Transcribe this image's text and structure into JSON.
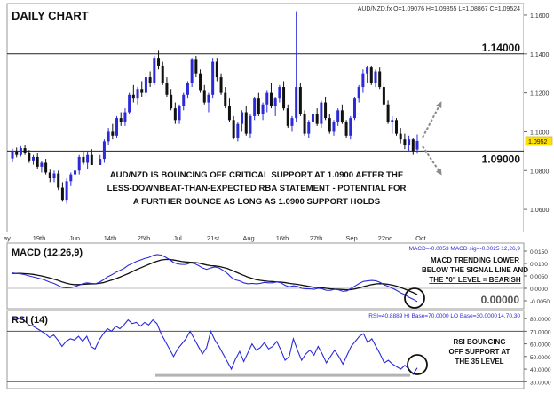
{
  "title": "DAILY CHART",
  "ohlc_readout": "AUD/NZD.fx O=1.09076 H=1.09855 L=1.08867 C=1.09524",
  "resistance": {
    "level": 1.14,
    "label": "1.14000"
  },
  "support": {
    "level": 1.09,
    "label": "1.09000"
  },
  "current_price_label": "1.0952",
  "price_annotation": [
    "AUD/NZD IS BOUNCING OFF CRITICAL SUPPORT AT 1.0900 AFTER THE",
    "LESS-DOWNBEAT-THAN-EXPECTED RBA STATEMENT - POTENTIAL FOR",
    "A FURTHER BOUNCE AS LONG AS 1.0900 SUPPORT HOLDS"
  ],
  "x_axis_labels": [
    "ay",
    "19th",
    "Jun",
    "14th",
    "25th",
    "Jul",
    "21st",
    "Aug",
    "16th",
    "27th",
    "Sep",
    "22nd",
    "Oct"
  ],
  "macd": {
    "title": "MACD (12,26,9)",
    "readout": "MACD=-0.0053 MACD sig=-0.0025 12,26,9",
    "annotation": [
      "MACD TRENDING LOWER",
      "BELOW THE SIGNAL LINE AND",
      "THE \"0\" LEVEL = BEARISH"
    ],
    "zero_label": "0.00000",
    "y_ticks": [
      "0.0150",
      "0.0100",
      "0.0050",
      "0.0000",
      "-0.0050"
    ]
  },
  "rsi": {
    "title": "RSI (14)",
    "readout": "RSI=40.8889 HI Base=70.0000 LO Base=30.0000",
    "readout_params": "14,70,30",
    "annotation": [
      "RSI BOUNCING",
      "OFF SUPPORT AT",
      "THE 35 LEVEL"
    ],
    "y_ticks": [
      "80.0000",
      "70.0000",
      "60.0000",
      "50.0000",
      "40.0000",
      "30.0000"
    ]
  },
  "colors": {
    "bull": "#2a2ad8",
    "bear": "#111111",
    "macd_line": "#2a2ad8",
    "signal_line": "#111111",
    "annotation_text": "#111111",
    "callout_bg": "#ffffff"
  },
  "chart_data": [
    {
      "type": "candlestick",
      "title": "DAILY CHART",
      "ylim": [
        1.05,
        1.165
      ],
      "y_ticks": [
        1.06,
        1.08,
        1.1,
        1.12,
        1.14,
        1.16
      ],
      "y_tick_labels": [
        "1.0600",
        "1.0800",
        "1.1000",
        "1.1200",
        "1.1400",
        "1.1600"
      ],
      "x_labels": [
        "ay",
        "19th",
        "Jun",
        "14th",
        "25th",
        "Jul",
        "21st",
        "Aug",
        "16th",
        "27th",
        "Sep",
        "22nd",
        "Oct"
      ],
      "series": [
        {
          "ohlc": [
            [
              1.0862,
              1.0912,
              1.0842,
              1.0898
            ],
            [
              1.0898,
              1.0918,
              1.0868,
              1.088
            ],
            [
              1.088,
              1.0925,
              1.0872,
              1.0915
            ],
            [
              1.0915,
              1.093,
              1.088,
              1.089
            ],
            [
              1.089,
              1.0905,
              1.084,
              1.0852
            ],
            [
              1.0852,
              1.088,
              1.083,
              1.087
            ],
            [
              1.087,
              1.089,
              1.081,
              1.082
            ],
            [
              1.082,
              1.085,
              1.079,
              1.084
            ],
            [
              1.084,
              1.086,
              1.078,
              1.079
            ],
            [
              1.079,
              1.0805,
              1.074,
              1.076
            ],
            [
              1.076,
              1.08,
              1.074,
              1.0785
            ],
            [
              1.0785,
              1.08,
              1.07,
              1.0712
            ],
            [
              1.0712,
              1.074,
              1.064,
              1.065
            ],
            [
              1.065,
              1.076,
              1.063,
              1.0745
            ],
            [
              1.0745,
              1.079,
              1.072,
              1.078
            ],
            [
              1.078,
              1.082,
              1.076,
              1.08
            ],
            [
              1.08,
              1.088,
              1.078,
              1.087
            ],
            [
              1.087,
              1.09,
              1.083,
              1.084
            ],
            [
              1.084,
              1.09,
              1.081,
              1.088
            ],
            [
              1.088,
              1.091,
              1.076,
              1.078
            ],
            [
              1.078,
              1.082,
              1.073,
              1.077
            ],
            [
              1.077,
              1.088,
              1.075,
              1.086
            ],
            [
              1.086,
              1.096,
              1.084,
              1.095
            ],
            [
              1.095,
              1.102,
              1.093,
              1.1
            ],
            [
              1.1,
              1.104,
              1.096,
              1.098
            ],
            [
              1.098,
              1.108,
              1.097,
              1.107
            ],
            [
              1.107,
              1.11,
              1.103,
              1.105
            ],
            [
              1.105,
              1.112,
              1.103,
              1.11
            ],
            [
              1.11,
              1.12,
              1.109,
              1.119
            ],
            [
              1.119,
              1.124,
              1.115,
              1.117
            ],
            [
              1.117,
              1.123,
              1.114,
              1.122
            ],
            [
              1.122,
              1.126,
              1.118,
              1.12
            ],
            [
              1.12,
              1.13,
              1.118,
              1.128
            ],
            [
              1.128,
              1.131,
              1.123,
              1.125
            ],
            [
              1.125,
              1.139,
              1.124,
              1.138
            ],
            [
              1.138,
              1.142,
              1.132,
              1.134
            ],
            [
              1.134,
              1.136,
              1.124,
              1.125
            ],
            [
              1.125,
              1.128,
              1.118,
              1.119
            ],
            [
              1.119,
              1.122,
              1.111,
              1.112
            ],
            [
              1.112,
              1.115,
              1.104,
              1.106
            ],
            [
              1.106,
              1.114,
              1.104,
              1.113
            ],
            [
              1.113,
              1.12,
              1.111,
              1.119
            ],
            [
              1.119,
              1.126,
              1.117,
              1.125
            ],
            [
              1.125,
              1.138,
              1.123,
              1.137
            ],
            [
              1.137,
              1.139,
              1.128,
              1.13
            ],
            [
              1.13,
              1.132,
              1.12,
              1.121
            ],
            [
              1.121,
              1.124,
              1.114,
              1.115
            ],
            [
              1.115,
              1.12,
              1.11,
              1.119
            ],
            [
              1.119,
              1.138,
              1.117,
              1.136
            ],
            [
              1.136,
              1.138,
              1.126,
              1.128
            ],
            [
              1.128,
              1.13,
              1.119,
              1.12
            ],
            [
              1.12,
              1.123,
              1.112,
              1.113
            ],
            [
              1.113,
              1.117,
              1.105,
              1.106
            ],
            [
              1.106,
              1.108,
              1.096,
              1.097
            ],
            [
              1.097,
              1.105,
              1.095,
              1.104
            ],
            [
              1.104,
              1.111,
              1.1,
              1.11
            ],
            [
              1.11,
              1.113,
              1.098,
              1.099
            ],
            [
              1.099,
              1.109,
              1.097,
              1.108
            ],
            [
              1.108,
              1.118,
              1.106,
              1.117
            ],
            [
              1.117,
              1.12,
              1.108,
              1.109
            ],
            [
              1.109,
              1.115,
              1.106,
              1.114
            ],
            [
              1.114,
              1.121,
              1.11,
              1.12
            ],
            [
              1.12,
              1.125,
              1.112,
              1.113
            ],
            [
              1.113,
              1.118,
              1.108,
              1.117
            ],
            [
              1.117,
              1.124,
              1.115,
              1.123
            ],
            [
              1.123,
              1.126,
              1.111,
              1.112
            ],
            [
              1.112,
              1.114,
              1.102,
              1.103
            ],
            [
              1.103,
              1.108,
              1.1,
              1.107
            ],
            [
              1.107,
              1.162,
              1.105,
              1.123
            ],
            [
              1.123,
              1.125,
              1.108,
              1.109
            ],
            [
              1.109,
              1.111,
              1.098,
              1.099
            ],
            [
              1.099,
              1.106,
              1.097,
              1.105
            ],
            [
              1.105,
              1.111,
              1.102,
              1.109
            ],
            [
              1.109,
              1.112,
              1.103,
              1.104
            ],
            [
              1.104,
              1.116,
              1.102,
              1.115
            ],
            [
              1.115,
              1.118,
              1.106,
              1.107
            ],
            [
              1.107,
              1.109,
              1.099,
              1.1
            ],
            [
              1.1,
              1.106,
              1.098,
              1.105
            ],
            [
              1.105,
              1.112,
              1.103,
              1.111
            ],
            [
              1.111,
              1.114,
              1.104,
              1.105
            ],
            [
              1.105,
              1.106,
              1.097,
              1.098
            ],
            [
              1.098,
              1.108,
              1.096,
              1.107
            ],
            [
              1.107,
              1.118,
              1.106,
              1.117
            ],
            [
              1.117,
              1.124,
              1.115,
              1.123
            ],
            [
              1.123,
              1.132,
              1.12,
              1.13
            ],
            [
              1.13,
              1.134,
              1.125,
              1.133
            ],
            [
              1.133,
              1.134,
              1.124,
              1.125
            ],
            [
              1.125,
              1.132,
              1.123,
              1.131
            ],
            [
              1.131,
              1.133,
              1.122,
              1.123
            ],
            [
              1.123,
              1.125,
              1.113,
              1.114
            ],
            [
              1.114,
              1.116,
              1.104,
              1.105
            ],
            [
              1.105,
              1.108,
              1.099,
              1.106
            ],
            [
              1.106,
              1.107,
              1.098,
              1.099
            ],
            [
              1.099,
              1.102,
              1.094,
              1.096
            ],
            [
              1.096,
              1.099,
              1.091,
              1.093
            ],
            [
              1.093,
              1.098,
              1.09,
              1.096
            ],
            [
              1.096,
              1.097,
              1.088,
              1.09
            ],
            [
              1.0908,
              1.0986,
              1.0887,
              1.0952
            ]
          ]
        }
      ]
    },
    {
      "type": "line",
      "title": "MACD (12,26,9)",
      "ylim": [
        -0.0075,
        0.0175
      ],
      "y_ticks": [
        0.015,
        0.01,
        0.005,
        0,
        -0.005
      ],
      "series": [
        {
          "name": "MACD",
          "values": [
            0.0062,
            0.006,
            0.0058,
            0.0055,
            0.005,
            0.0046,
            0.0042,
            0.0038,
            0.0032,
            0.0025,
            0.002,
            0.0012,
            0.0004,
            0.0002,
            0.0003,
            0.0006,
            0.0012,
            0.0018,
            0.0022,
            0.002,
            0.0018,
            0.0024,
            0.0034,
            0.0046,
            0.0054,
            0.0064,
            0.0072,
            0.008,
            0.0092,
            0.01,
            0.0108,
            0.0114,
            0.012,
            0.0124,
            0.0132,
            0.0136,
            0.0134,
            0.0126,
            0.0116,
            0.0104,
            0.0098,
            0.0096,
            0.0096,
            0.0102,
            0.01,
            0.0092,
            0.0082,
            0.0076,
            0.0082,
            0.0086,
            0.0082,
            0.0072,
            0.006,
            0.0044,
            0.0034,
            0.003,
            0.0022,
            0.0018,
            0.002,
            0.0018,
            0.002,
            0.0024,
            0.0022,
            0.0022,
            0.0026,
            0.0022,
            0.0012,
            0.0006,
            0.001,
            0.0008,
            0.0,
            -0.0002,
            -0.0002,
            -0.0004,
            0.0,
            -0.0002,
            -0.0008,
            -0.0008,
            -0.0004,
            -0.0006,
            -0.0012,
            -0.001,
            0.0,
            0.001,
            0.002,
            0.0028,
            0.003,
            0.0032,
            0.003,
            0.0024,
            0.0014,
            0.0008,
            0.0,
            -0.0008,
            -0.0018,
            -0.0026,
            -0.0036,
            -0.0044,
            -0.0053
          ]
        },
        {
          "name": "MACD sig",
          "values": [
            0.006,
            0.006,
            0.006,
            0.0059,
            0.0058,
            0.0056,
            0.0053,
            0.005,
            0.0046,
            0.0042,
            0.0037,
            0.0032,
            0.0026,
            0.0021,
            0.0017,
            0.0015,
            0.0015,
            0.0016,
            0.0017,
            0.0018,
            0.0018,
            0.002,
            0.0023,
            0.0028,
            0.0033,
            0.0039,
            0.0045,
            0.0052,
            0.0059,
            0.0067,
            0.0075,
            0.0082,
            0.0089,
            0.0096,
            0.0103,
            0.0109,
            0.0114,
            0.0116,
            0.0116,
            0.0114,
            0.0111,
            0.0108,
            0.0106,
            0.0105,
            0.0104,
            0.0102,
            0.0098,
            0.0094,
            0.0091,
            0.009,
            0.0088,
            0.0084,
            0.008,
            0.0073,
            0.0066,
            0.0059,
            0.0052,
            0.0045,
            0.004,
            0.0035,
            0.0032,
            0.003,
            0.0028,
            0.0027,
            0.0026,
            0.0025,
            0.0023,
            0.002,
            0.0018,
            0.0016,
            0.0013,
            0.001,
            0.0007,
            0.0004,
            0.0003,
            0.0002,
            0.0,
            -0.0002,
            -0.0003,
            -0.0004,
            -0.0005,
            -0.0006,
            -0.0005,
            -0.0002,
            0.0002,
            0.0007,
            0.0011,
            0.0015,
            0.0018,
            0.0019,
            0.0018,
            0.0016,
            0.0013,
            0.0009,
            0.0003,
            -0.0003,
            -0.001,
            -0.0017,
            -0.0025
          ]
        }
      ]
    },
    {
      "type": "line",
      "title": "RSI (14)",
      "ylim": [
        26,
        85
      ],
      "y_ticks": [
        80,
        70,
        60,
        50,
        40,
        30
      ],
      "hlines": [
        70,
        30
      ],
      "support_line": 35,
      "series": [
        {
          "name": "RSI",
          "values": [
            80,
            79,
            81,
            78,
            75,
            74,
            72,
            70,
            68,
            65,
            67,
            63,
            58,
            62,
            64,
            63,
            66,
            62,
            66,
            58,
            56,
            63,
            68,
            72,
            70,
            74,
            72,
            75,
            79,
            76,
            77,
            74,
            77,
            75,
            79,
            76,
            68,
            62,
            56,
            50,
            56,
            60,
            64,
            70,
            64,
            58,
            52,
            57,
            70,
            63,
            58,
            52,
            46,
            40,
            48,
            54,
            46,
            53,
            60,
            55,
            57,
            61,
            56,
            58,
            62,
            55,
            47,
            50,
            64,
            55,
            47,
            52,
            55,
            51,
            58,
            52,
            45,
            50,
            55,
            50,
            44,
            51,
            58,
            62,
            66,
            68,
            61,
            64,
            58,
            52,
            45,
            47,
            44,
            42,
            40,
            43,
            40,
            36,
            41
          ]
        }
      ]
    }
  ]
}
